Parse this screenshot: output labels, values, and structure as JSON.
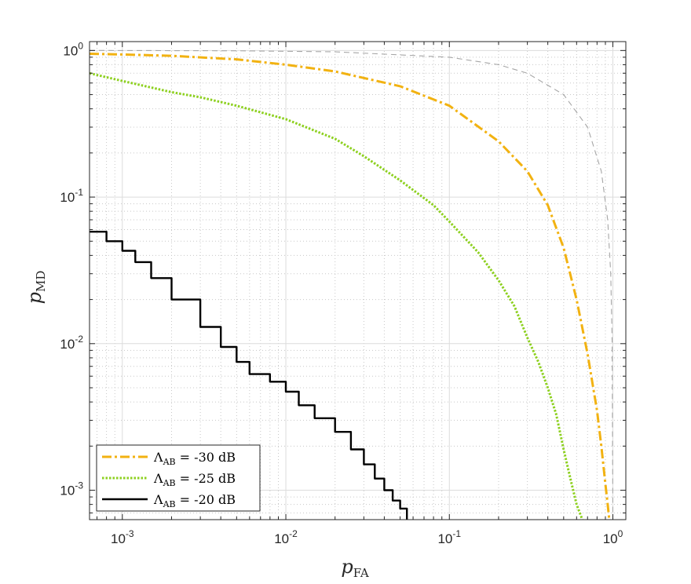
{
  "chart_data": {
    "type": "line",
    "xlabel": {
      "main": "p",
      "sub": "FA"
    },
    "ylabel": {
      "main": "p",
      "sub": "MD"
    },
    "xscale": "log",
    "yscale": "log",
    "xlim": [
      0.00063,
      1.2
    ],
    "ylim": [
      0.00063,
      1.15
    ],
    "grid": true,
    "minor_grid": true,
    "legend_position": "bottom-left",
    "x_ticks": [
      {
        "value": 0.001,
        "base": "10",
        "exp": "-3"
      },
      {
        "value": 0.01,
        "base": "10",
        "exp": "-2"
      },
      {
        "value": 0.1,
        "base": "10",
        "exp": "-1"
      },
      {
        "value": 1,
        "base": "10",
        "exp": "0"
      }
    ],
    "y_ticks": [
      {
        "value": 0.001,
        "base": "10",
        "exp": "-3"
      },
      {
        "value": 0.01,
        "base": "10",
        "exp": "-2"
      },
      {
        "value": 0.1,
        "base": "10",
        "exp": "-1"
      },
      {
        "value": 1,
        "base": "10",
        "exp": "0"
      }
    ],
    "reference_line": {
      "name": "",
      "style": "dashed",
      "color": "#a6a6a6",
      "x": [
        0.00063,
        0.005,
        0.02,
        0.1,
        0.2,
        0.3,
        0.5,
        0.7,
        0.85,
        0.93,
        0.97,
        0.99,
        1.0
      ],
      "y": [
        1.0,
        0.995,
        0.98,
        0.9,
        0.8,
        0.7,
        0.5,
        0.3,
        0.15,
        0.07,
        0.03,
        0.01,
        0.00063
      ]
    },
    "series": [
      {
        "name": "-30 dB",
        "legend_lambda": "Λ",
        "legend_sub": "AB",
        "legend_value": " = -30 dB",
        "color": "#f2b211",
        "style": "dashdot",
        "x": [
          0.00063,
          0.001,
          0.002,
          0.005,
          0.01,
          0.02,
          0.05,
          0.1,
          0.2,
          0.3,
          0.4,
          0.5,
          0.6,
          0.7,
          0.8,
          0.85,
          0.9,
          0.93,
          0.95
        ],
        "y": [
          0.95,
          0.94,
          0.92,
          0.87,
          0.8,
          0.72,
          0.57,
          0.42,
          0.24,
          0.15,
          0.088,
          0.045,
          0.02,
          0.0085,
          0.0035,
          0.002,
          0.0011,
          0.0008,
          0.00063
        ]
      },
      {
        "name": "-25 dB",
        "legend_lambda": "Λ",
        "legend_sub": "AB",
        "legend_value": " = -25 dB",
        "color": "#8dd01f",
        "style": "dotted",
        "x": [
          0.00063,
          0.001,
          0.002,
          0.003,
          0.005,
          0.01,
          0.02,
          0.03,
          0.05,
          0.08,
          0.1,
          0.15,
          0.2,
          0.25,
          0.3,
          0.35,
          0.4,
          0.45,
          0.5,
          0.55,
          0.6,
          0.65
        ],
        "y": [
          0.7,
          0.62,
          0.52,
          0.48,
          0.42,
          0.34,
          0.25,
          0.19,
          0.13,
          0.088,
          0.068,
          0.042,
          0.027,
          0.018,
          0.011,
          0.0075,
          0.005,
          0.0033,
          0.0019,
          0.0012,
          0.0008,
          0.00063
        ]
      },
      {
        "name": "-20 dB",
        "legend_lambda": "Λ",
        "legend_sub": "AB",
        "legend_value": " = -20 dB",
        "color": "#000000",
        "style": "solid",
        "x": [
          0.00063,
          0.0008,
          0.001,
          0.0012,
          0.0015,
          0.002,
          0.003,
          0.004,
          0.005,
          0.006,
          0.008,
          0.01,
          0.012,
          0.015,
          0.02,
          0.025,
          0.03,
          0.035,
          0.04,
          0.045,
          0.05,
          0.055
        ],
        "y": [
          0.058,
          0.05,
          0.043,
          0.036,
          0.028,
          0.02,
          0.013,
          0.0095,
          0.0075,
          0.0062,
          0.0055,
          0.0047,
          0.0038,
          0.0031,
          0.0025,
          0.0019,
          0.0015,
          0.0012,
          0.001,
          0.00085,
          0.00075,
          0.00063
        ]
      }
    ]
  }
}
